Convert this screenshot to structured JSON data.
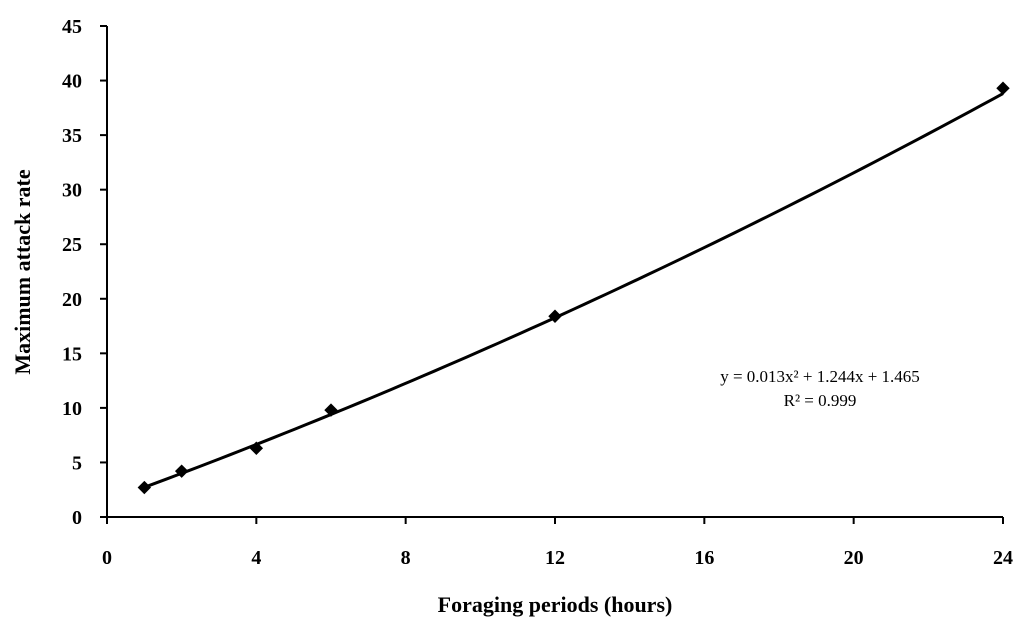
{
  "chart_data": {
    "type": "scatter",
    "xlabel": "Foraging periods (hours)",
    "ylabel": "Maximum attack rate",
    "xlim": [
      0,
      24
    ],
    "ylim": [
      0,
      45
    ],
    "x_ticks": [
      0,
      4,
      8,
      12,
      16,
      20,
      24
    ],
    "y_ticks": [
      0,
      5,
      10,
      15,
      20,
      25,
      30,
      35,
      40,
      45
    ],
    "grid": false,
    "series": [
      {
        "marker": "diamond",
        "color": "#000000",
        "points": [
          {
            "x": 1,
            "y": 2.7
          },
          {
            "x": 2,
            "y": 4.2
          },
          {
            "x": 4,
            "y": 6.3
          },
          {
            "x": 6,
            "y": 9.8
          },
          {
            "x": 12,
            "y": 18.4
          },
          {
            "x": 24,
            "y": 39.3
          }
        ]
      }
    ],
    "trendline": {
      "type": "polynomial",
      "coefficients": {
        "a": 0.013,
        "b": 1.244,
        "c": 1.465
      },
      "x_range": [
        1,
        24
      ],
      "color": "#000000"
    },
    "annotations": {
      "equation": "y = 0.013x² + 1.244x + 1.465",
      "r_squared": "R² = 0.999"
    }
  }
}
